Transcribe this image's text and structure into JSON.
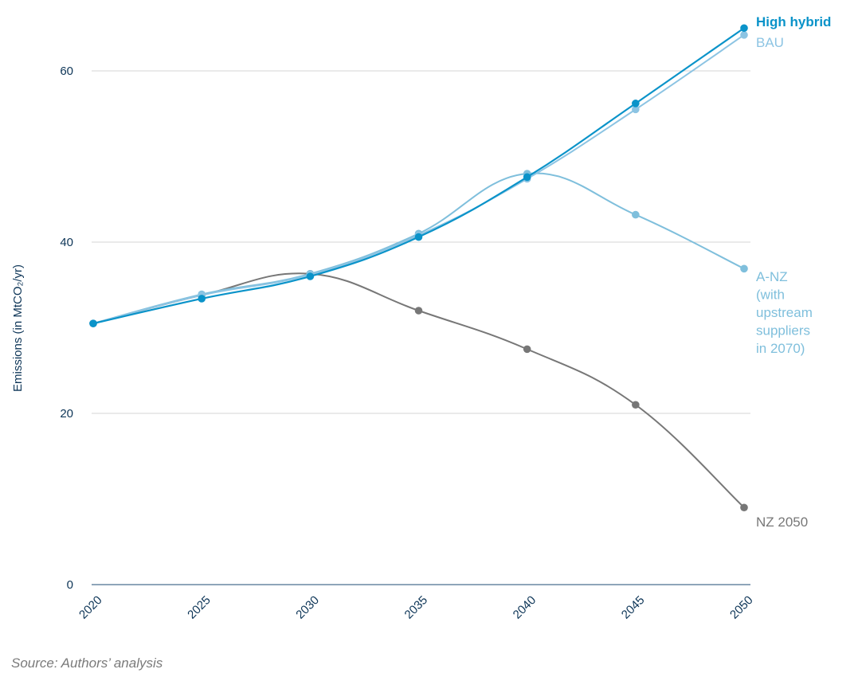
{
  "chart_data": {
    "type": "line",
    "title": "",
    "xlabel": "",
    "ylabel": "Emissions (in MtCO₂/yr)",
    "x": [
      2020,
      2025,
      2030,
      2035,
      2040,
      2045,
      2050
    ],
    "x_tick_labels": [
      "2020",
      "2025",
      "2030",
      "2035",
      "2040",
      "2045",
      "2050"
    ],
    "y_ticks": [
      0,
      20,
      40,
      60
    ],
    "y_tick_labels": [
      "0",
      "20",
      "40",
      "60"
    ],
    "ylim": [
      0,
      65
    ],
    "xlim": [
      2020,
      2050
    ],
    "grid": "horizontal",
    "legend": "direct labels at right end of lines",
    "series": [
      {
        "name": "High hybrid",
        "label_lines": [
          "High hybrid"
        ],
        "color": "#0a93c9",
        "values": [
          30.5,
          33.4,
          36.0,
          40.6,
          47.6,
          56.2,
          65.0
        ]
      },
      {
        "name": "BAU",
        "label_lines": [
          "BAU"
        ],
        "color": "#8cc4e3",
        "values": [
          30.5,
          33.8,
          36.2,
          40.8,
          47.4,
          55.5,
          64.2
        ]
      },
      {
        "name": "A-NZ (with upstream suppliers in 2070)",
        "label_lines": [
          "A-NZ",
          "(with",
          "upstream",
          "suppliers",
          "in 2070)"
        ],
        "color": "#7fbfdc",
        "values": [
          30.5,
          33.9,
          36.3,
          41.0,
          48.0,
          43.2,
          36.9
        ]
      },
      {
        "name": "NZ 2050",
        "label_lines": [
          "NZ 2050"
        ],
        "color": "#777777",
        "values": [
          30.5,
          33.8,
          36.3,
          32.0,
          27.5,
          21.0,
          9.0
        ]
      }
    ]
  },
  "source_note": "Source: Authors’ analysis"
}
